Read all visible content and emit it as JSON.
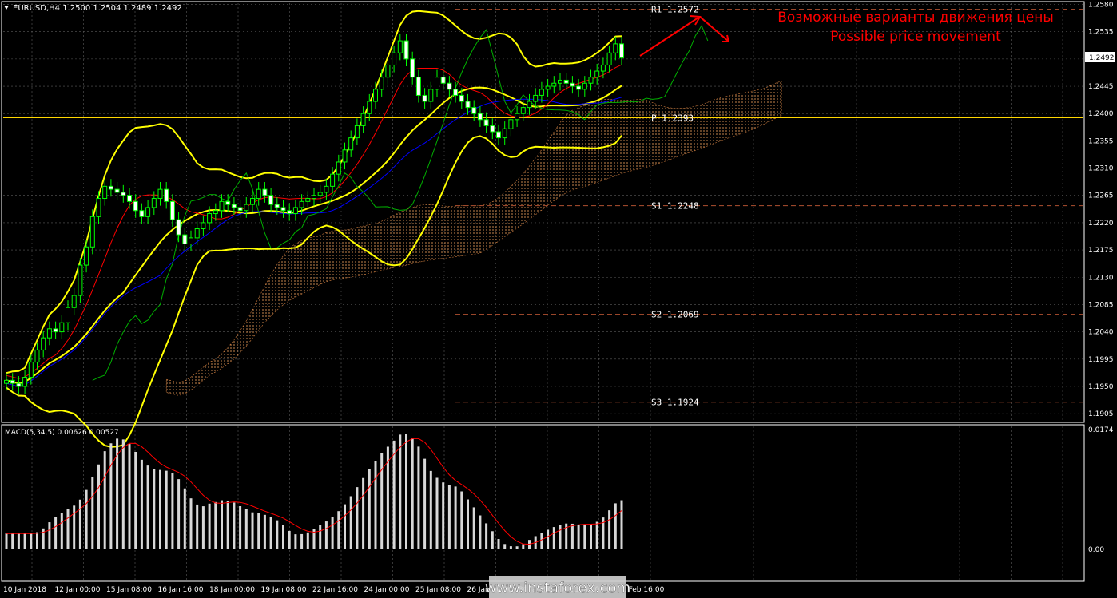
{
  "header": {
    "symbol_line": "EURUSD,H4  1.2500 1.2504 1.2489 1.2492",
    "menu_icon": "triangle-down-icon"
  },
  "annotation": {
    "ru": "Возможные варианты движения цены",
    "en": "Possible price movement"
  },
  "watermark": "www.instaforex.com",
  "colors": {
    "background": "#000000",
    "grid": "#5a5a5a",
    "frame": "#ffffff",
    "candle": "#00ff00",
    "bollinger": "#ffff00",
    "tenkan": "#ff0000",
    "kijun": "#0000ff",
    "chikou": "#00b000",
    "pivot": "#ffd700",
    "levels": "#b05030",
    "macd_hist": "#d8d8d8",
    "macd_signal": "#ff0000",
    "annotation": "#ff0000",
    "kumo_bull": "#f4a460",
    "kumo_bear": "#cc7a3c"
  },
  "chart_data": [
    {
      "type": "candlestick",
      "title": "EURUSD,H4",
      "ohlc_last": {
        "open": 1.25,
        "high": 1.2504,
        "low": 1.2489,
        "close": 1.2492
      },
      "current_price": "1.2492",
      "ylim": [
        1.1892,
        1.2582
      ],
      "y_ticks": [
        "1.2580",
        "1.2535",
        "1.2490",
        "1.2445",
        "1.2400",
        "1.2355",
        "1.2310",
        "1.2265",
        "1.2220",
        "1.2175",
        "1.2130",
        "1.2085",
        "1.2040",
        "1.1995",
        "1.1950",
        "1.1905"
      ],
      "x_ticks": [
        "10 Jan 2018",
        "12 Jan 00:00",
        "15 Jan 08:00",
        "16 Jan 16:00",
        "18 Jan 00:00",
        "19 Jan 08:00",
        "22 Jan 16:00",
        "24 Jan 00:00",
        "25 Jan 08:00",
        "26 Jan 16:00",
        "30 Jan 00:00",
        "31 Jan 08:00",
        "1 Feb 16:00"
      ],
      "levels": [
        {
          "label": "R1",
          "value": "1.2572"
        },
        {
          "label": "P",
          "value": "1.2393"
        },
        {
          "label": "S1",
          "value": "1.2248"
        },
        {
          "label": "S2",
          "value": "1.2069"
        },
        {
          "label": "S3",
          "value": "1.1924"
        }
      ],
      "series": [
        {
          "name": "close",
          "values": [
            1.196,
            1.1955,
            1.195,
            1.1965,
            1.199,
            1.201,
            1.203,
            1.2045,
            1.204,
            1.2055,
            1.208,
            1.21,
            1.215,
            1.218,
            1.223,
            1.226,
            1.228,
            1.2275,
            1.227,
            1.2265,
            1.2255,
            1.224,
            1.223,
            1.2245,
            1.226,
            1.2275,
            1.2255,
            1.2225,
            1.22,
            1.2185,
            1.2195,
            1.221,
            1.222,
            1.2235,
            1.224,
            1.2255,
            1.225,
            1.2245,
            1.224,
            1.225,
            1.226,
            1.2275,
            1.2265,
            1.225,
            1.2245,
            1.224,
            1.2235,
            1.2245,
            1.2255,
            1.226,
            1.2265,
            1.227,
            1.228,
            1.23,
            1.232,
            1.234,
            1.236,
            1.238,
            1.24,
            1.242,
            1.244,
            1.246,
            1.248,
            1.25,
            1.252,
            1.249,
            1.246,
            1.243,
            1.242,
            1.244,
            1.246,
            1.245,
            1.244,
            1.243,
            1.242,
            1.241,
            1.24,
            1.239,
            1.238,
            1.237,
            1.236,
            1.2375,
            1.239,
            1.24,
            1.241,
            1.242,
            1.243,
            1.244,
            1.2445,
            1.245,
            1.2455,
            1.245,
            1.2445,
            1.244,
            1.245,
            1.246,
            1.247,
            1.248,
            1.25,
            1.2515,
            1.2492
          ]
        },
        {
          "name": "MACD(5,34,5)",
          "value": "0.00626",
          "signal_value": "0.00527",
          "ylim": [
            0,
            0.0174
          ],
          "y_ticks": [
            "0.0174",
            "0.00"
          ]
        }
      ]
    }
  ]
}
